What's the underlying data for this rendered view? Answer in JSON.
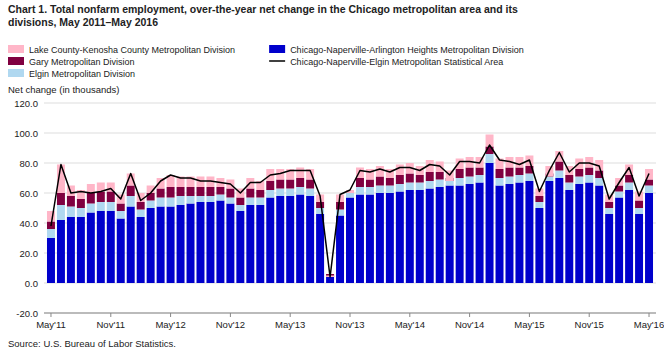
{
  "chart_data": {
    "type": "bar",
    "title": "Chart 1. Total nonfarm employment, over-the-year net change in the Chicago metropolitan area and its",
    "subtitle": "divisions,  May 2011–May 2016",
    "y_label": "Net change (in thousands)",
    "source": "Source: U.S. Bureau of Labor Statistics.",
    "stacked": true,
    "grid": true,
    "legend": "top",
    "ylim": [
      -20.0,
      120.0
    ],
    "yticks": [
      {
        "value": -20.0,
        "label": "-20.0"
      },
      {
        "value": 0.0,
        "label": "0.0"
      },
      {
        "value": 20.0,
        "label": "20.0"
      },
      {
        "value": 40.0,
        "label": "40.0"
      },
      {
        "value": 60.0,
        "label": "60.0"
      },
      {
        "value": 80.0,
        "label": "80.0"
      },
      {
        "value": 100.0,
        "label": "100.0"
      },
      {
        "value": 120.0,
        "label": "120.0"
      }
    ],
    "categories": [
      "May'11",
      null,
      null,
      null,
      null,
      null,
      "Nov'11",
      null,
      null,
      null,
      null,
      null,
      "May'12",
      null,
      null,
      null,
      null,
      null,
      "Nov'12",
      null,
      null,
      null,
      null,
      null,
      "May'13",
      null,
      null,
      null,
      null,
      null,
      "Nov'13",
      null,
      null,
      null,
      null,
      null,
      "May'14",
      null,
      null,
      null,
      null,
      null,
      "Nov'14",
      null,
      null,
      null,
      null,
      null,
      "May'15",
      null,
      null,
      null,
      null,
      null,
      "Nov'15",
      null,
      null,
      null,
      null,
      null,
      "May'16"
    ],
    "series": [
      {
        "name": "Chicago-Naperville-Arlington Heights Metropolitan Division",
        "color": "#0000CC",
        "values": [
          30,
          42,
          44,
          44,
          47,
          48,
          48,
          43,
          51,
          44,
          50,
          51,
          51,
          52,
          53,
          54,
          54,
          55,
          53,
          48,
          52,
          52,
          57,
          58,
          58,
          59,
          58,
          46,
          5,
          45,
          57,
          59,
          59,
          60,
          60,
          61,
          62,
          62,
          63,
          64,
          65,
          65,
          66,
          67,
          80,
          65,
          66,
          67,
          68,
          50,
          68,
          70,
          62,
          66,
          67,
          65,
          46,
          57,
          62,
          46,
          60
        ]
      },
      {
        "name": "Elgin Metropolitan Division",
        "color": "#B0D8F0",
        "values": [
          6,
          10,
          7,
          6,
          6,
          6,
          6,
          5,
          7,
          5,
          5,
          6,
          6,
          6,
          5,
          4,
          4,
          4,
          4,
          4,
          5,
          5,
          5,
          5,
          5,
          5,
          5,
          4,
          1,
          4,
          5,
          5,
          5,
          5,
          5,
          5,
          5,
          5,
          5,
          5,
          5,
          5,
          5,
          5,
          6,
          5,
          5,
          5,
          5,
          4,
          5,
          5,
          5,
          5,
          5,
          5,
          4,
          4,
          5,
          4,
          5
        ]
      },
      {
        "name": "Gary Metropolitan Division",
        "color": "#800040",
        "values": [
          5,
          8,
          7,
          6,
          7,
          7,
          7,
          5,
          7,
          5,
          5,
          6,
          7,
          6,
          6,
          6,
          6,
          5,
          6,
          5,
          6,
          5,
          6,
          6,
          6,
          6,
          6,
          4,
          -2,
          5,
          -2,
          6,
          5,
          6,
          5,
          6,
          6,
          5,
          6,
          5,
          -2,
          6,
          6,
          5,
          5,
          6,
          6,
          5,
          5,
          4,
          -2,
          6,
          5,
          5,
          5,
          5,
          4,
          4,
          5,
          5,
          4
        ]
      },
      {
        "name": "Lake County-Kenosha County Metropolitan Division",
        "color": "#FFB6C8",
        "values": [
          7,
          19,
          7,
          6,
          6,
          6,
          6,
          6,
          8,
          6,
          5,
          7,
          8,
          7,
          7,
          7,
          7,
          6,
          6,
          6,
          7,
          6,
          8,
          7,
          7,
          7,
          7,
          5,
          1,
          5,
          2,
          7,
          7,
          7,
          6,
          7,
          7,
          6,
          8,
          7,
          7,
          7,
          7,
          7,
          8,
          7,
          7,
          7,
          7,
          5,
          7,
          7,
          6,
          7,
          7,
          7,
          5,
          5,
          7,
          6,
          7
        ]
      },
      {
        "name": "Chicago-Naperville-Elgin Metropolitan Statistical Area",
        "type": "line",
        "color": "#000000",
        "values": [
          38,
          79,
          60,
          61,
          60,
          61,
          63,
          56,
          73,
          55,
          60,
          68,
          72,
          70,
          70,
          68,
          68,
          67,
          66,
          60,
          67,
          67,
          72,
          73,
          75,
          75,
          75,
          58,
          4,
          59,
          62,
          75,
          74,
          76,
          74,
          77,
          77,
          75,
          79,
          78,
          72,
          81,
          81,
          80,
          92,
          82,
          81,
          79,
          82,
          61,
          75,
          87,
          74,
          80,
          80,
          78,
          56,
          67,
          77,
          58,
          73
        ]
      }
    ]
  }
}
